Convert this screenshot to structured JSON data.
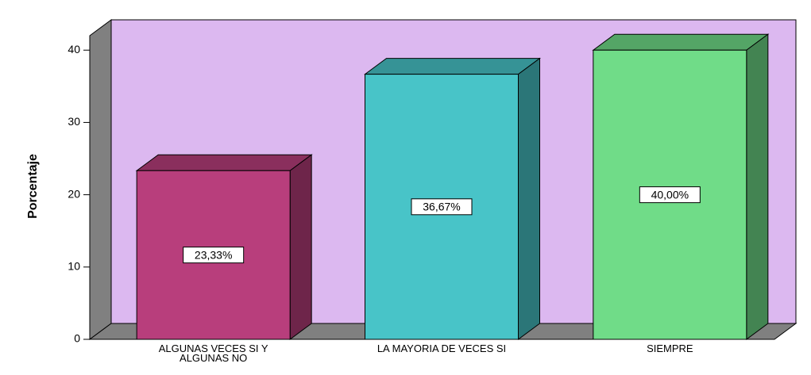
{
  "chart_data": {
    "type": "bar3d",
    "y_label": "Porcentaje",
    "categories": [
      "ALGUNAS VECES SI Y ALGUNAS NO",
      "LA MAYORIA DE VECES SI",
      "SIEMPRE"
    ],
    "values": [
      23.33,
      36.67,
      40.0
    ],
    "value_labels": [
      "23,33%",
      "36,67%",
      "40,00%"
    ],
    "colors": [
      "#b83e7c",
      "#48c4c8",
      "#70dc88"
    ],
    "ylim": [
      0,
      42
    ],
    "yticks": [
      0,
      10,
      20,
      30,
      40
    ]
  }
}
